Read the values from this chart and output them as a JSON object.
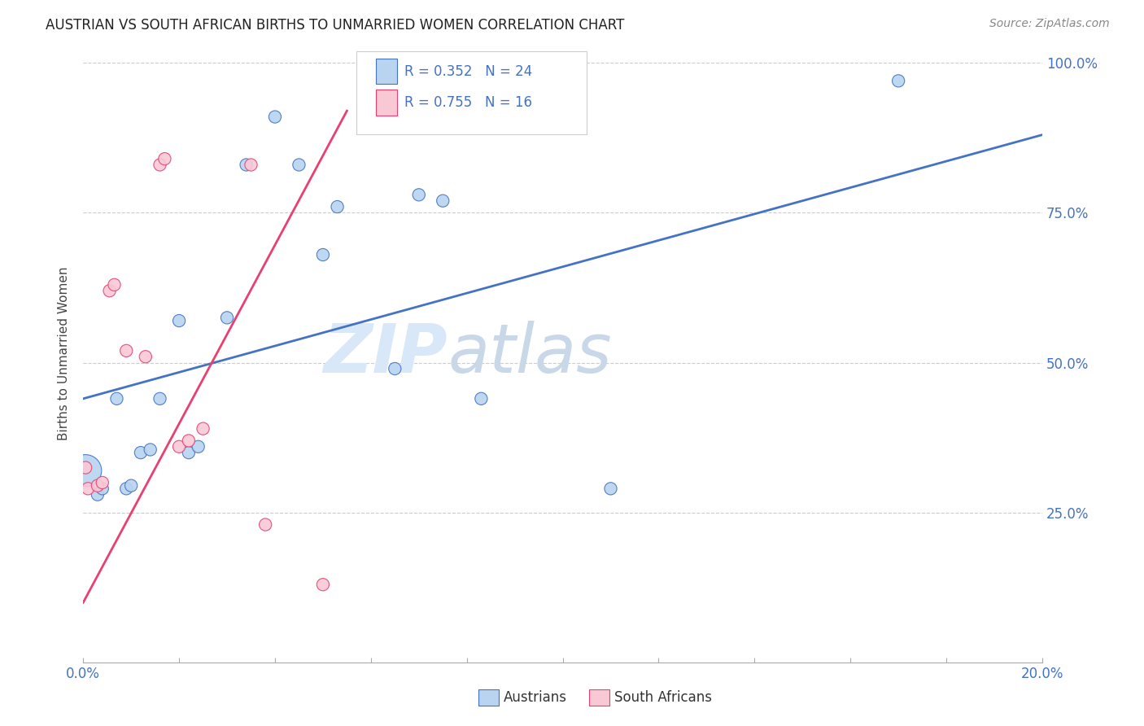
{
  "title": "AUSTRIAN VS SOUTH AFRICAN BIRTHS TO UNMARRIED WOMEN CORRELATION CHART",
  "source": "Source: ZipAtlas.com",
  "ylabel": "Births to Unmarried Women",
  "legend_austrians": "Austrians",
  "legend_south_africans": "South Africans",
  "r_blue": "R = 0.352",
  "n_blue": "N = 24",
  "r_pink": "R = 0.755",
  "n_pink": "N = 16",
  "x_min": 0.0,
  "x_max": 20.0,
  "y_min": 0.0,
  "y_max": 100.0,
  "yticks": [
    25.0,
    50.0,
    75.0,
    100.0
  ],
  "blue_color": "#B8D4F0",
  "pink_color": "#F9C8D5",
  "blue_line_color": "#4472C4",
  "pink_line_color": "#E84070",
  "watermark_zip": "ZIP",
  "watermark_atlas": "atlas",
  "blue_points": [
    [
      0.05,
      32.0
    ],
    [
      0.3,
      28.0
    ],
    [
      0.4,
      29.0
    ],
    [
      0.7,
      44.0
    ],
    [
      0.9,
      29.0
    ],
    [
      1.0,
      29.5
    ],
    [
      1.2,
      35.0
    ],
    [
      1.4,
      35.5
    ],
    [
      1.6,
      44.0
    ],
    [
      2.0,
      57.0
    ],
    [
      2.2,
      35.0
    ],
    [
      2.4,
      36.0
    ],
    [
      3.0,
      57.5
    ],
    [
      3.4,
      83.0
    ],
    [
      4.0,
      91.0
    ],
    [
      4.5,
      83.0
    ],
    [
      5.0,
      68.0
    ],
    [
      5.3,
      76.0
    ],
    [
      6.5,
      49.0
    ],
    [
      7.0,
      78.0
    ],
    [
      7.5,
      77.0
    ],
    [
      8.3,
      44.0
    ],
    [
      11.0,
      29.0
    ],
    [
      17.0,
      97.0
    ]
  ],
  "blue_point_sizes": [
    800,
    120,
    120,
    120,
    120,
    120,
    120,
    120,
    120,
    120,
    120,
    120,
    120,
    120,
    120,
    120,
    120,
    120,
    120,
    120,
    120,
    120,
    120,
    120
  ],
  "pink_points": [
    [
      0.05,
      32.5
    ],
    [
      0.1,
      29.0
    ],
    [
      0.3,
      29.5
    ],
    [
      0.4,
      30.0
    ],
    [
      0.55,
      62.0
    ],
    [
      0.65,
      63.0
    ],
    [
      0.9,
      52.0
    ],
    [
      1.3,
      51.0
    ],
    [
      1.6,
      83.0
    ],
    [
      1.7,
      84.0
    ],
    [
      2.0,
      36.0
    ],
    [
      2.2,
      37.0
    ],
    [
      2.5,
      39.0
    ],
    [
      3.5,
      83.0
    ],
    [
      3.8,
      23.0
    ],
    [
      5.0,
      13.0
    ]
  ],
  "pink_point_sizes": [
    120,
    120,
    120,
    120,
    120,
    120,
    120,
    120,
    120,
    120,
    120,
    120,
    120,
    120,
    120,
    120
  ],
  "blue_trendline_x": [
    0.0,
    20.0
  ],
  "blue_trendline_y": [
    44.0,
    88.0
  ],
  "pink_trendline_x": [
    0.0,
    5.5
  ],
  "pink_trendline_y": [
    10.0,
    92.0
  ]
}
